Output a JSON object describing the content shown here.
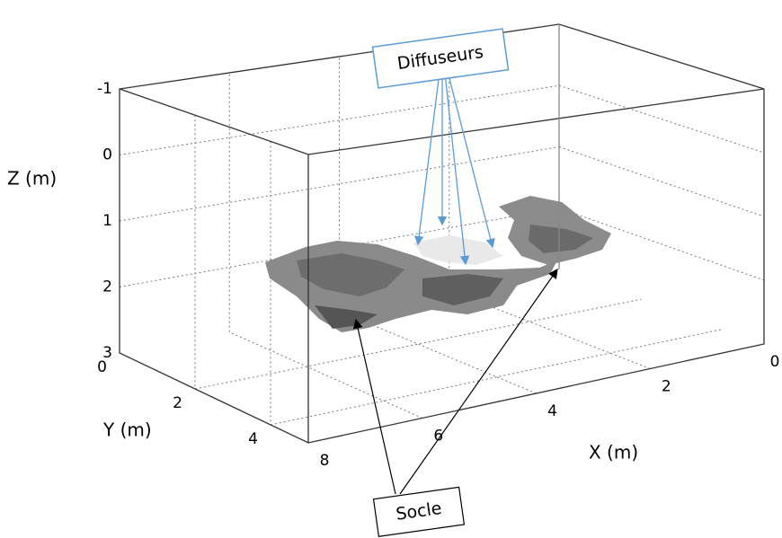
{
  "figure": {
    "axes": {
      "z": {
        "label": "Z (m)",
        "ticks": [
          "-1",
          "0",
          "1",
          "2",
          "3"
        ]
      },
      "y": {
        "label": "Y (m)",
        "ticks": [
          "0",
          "2",
          "4"
        ]
      },
      "x": {
        "label": "X (m)",
        "ticks": [
          "8",
          "6",
          "4",
          "2",
          "0"
        ]
      }
    },
    "annotations": [
      {
        "label": "Diffuseurs"
      },
      {
        "label": "Socle"
      }
    ]
  }
}
